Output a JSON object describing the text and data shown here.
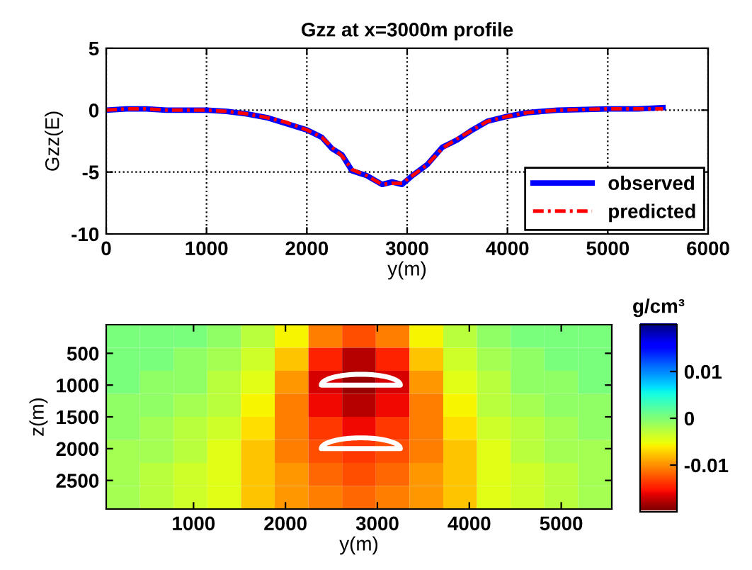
{
  "chart_data": [
    {
      "type": "line",
      "title": "Gzz at x=3000m profile",
      "xlabel": "y(m)",
      "ylabel": "Gzz(E)",
      "xlim": [
        0,
        6000
      ],
      "ylim": [
        -10,
        5
      ],
      "xticks": [
        0,
        1000,
        2000,
        3000,
        4000,
        5000,
        6000
      ],
      "yticks": [
        -10,
        -5,
        0,
        5
      ],
      "grid": true,
      "legend": "bottom right",
      "series": [
        {
          "name": "observed",
          "color": "#0000ff",
          "line_style": "solid",
          "x": [
            0,
            200,
            400,
            600,
            800,
            1000,
            1200,
            1400,
            1600,
            1800,
            2000,
            2150,
            2250,
            2350,
            2450,
            2600,
            2750,
            2850,
            2950,
            3050,
            3200,
            3350,
            3500,
            3650,
            3800,
            4000,
            4200,
            4500,
            5000,
            5300,
            5550
          ],
          "values": [
            0.0,
            0.1,
            0.1,
            0.0,
            0.0,
            0.0,
            -0.1,
            -0.3,
            -0.6,
            -1.1,
            -1.6,
            -2.2,
            -3.1,
            -3.6,
            -4.9,
            -5.3,
            -6.0,
            -5.8,
            -6.0,
            -5.3,
            -4.4,
            -3.0,
            -2.4,
            -1.6,
            -0.9,
            -0.5,
            -0.2,
            0.0,
            0.1,
            0.1,
            0.2
          ]
        },
        {
          "name": "predicted",
          "color": "#ff0000",
          "line_style": "dashdot",
          "x": [
            0,
            200,
            400,
            600,
            800,
            1000,
            1200,
            1400,
            1600,
            1800,
            2000,
            2150,
            2250,
            2350,
            2450,
            2600,
            2750,
            2850,
            2950,
            3050,
            3200,
            3350,
            3500,
            3650,
            3800,
            4000,
            4200,
            4500,
            5000,
            5300,
            5550
          ],
          "values": [
            0.0,
            0.1,
            0.1,
            0.0,
            0.0,
            0.0,
            -0.1,
            -0.3,
            -0.6,
            -1.0,
            -1.6,
            -2.2,
            -3.0,
            -3.7,
            -4.8,
            -5.3,
            -6.0,
            -5.9,
            -5.9,
            -5.3,
            -4.4,
            -3.1,
            -2.3,
            -1.6,
            -0.9,
            -0.5,
            -0.2,
            0.0,
            0.1,
            0.1,
            0.1
          ]
        }
      ]
    },
    {
      "type": "heatmap",
      "xlabel": "y(m)",
      "ylabel": "z(m)",
      "clabel": "g/cm³",
      "xlim": [
        50,
        5550
      ],
      "ylim": [
        2950,
        50
      ],
      "xticks": [
        1000,
        2000,
        3000,
        4000,
        5000
      ],
      "yticks": [
        500,
        1000,
        1500,
        2000,
        2500
      ],
      "clim": [
        -0.02,
        0.02
      ],
      "cticks": [
        -0.01,
        0,
        0.01
      ],
      "x": [
        233,
        600,
        967,
        1333,
        1700,
        2067,
        2433,
        2800,
        3167,
        3533,
        3900,
        4267,
        4633,
        5000,
        5367
      ],
      "y": [
        231,
        594,
        956,
        1319,
        1681,
        2044,
        2406,
        2769
      ],
      "cells": [
        [
          0.0,
          0.0,
          0.0,
          -0.001,
          -0.003,
          -0.006,
          -0.011,
          -0.013,
          -0.011,
          -0.006,
          -0.003,
          -0.001,
          0.0,
          0.0,
          0.0
        ],
        [
          0.0,
          0.0,
          -0.001,
          -0.002,
          -0.004,
          -0.008,
          -0.015,
          -0.018,
          -0.015,
          -0.008,
          -0.004,
          -0.002,
          -0.001,
          0.0,
          0.0
        ],
        [
          0.0,
          -0.001,
          -0.001,
          -0.003,
          -0.005,
          -0.01,
          -0.017,
          -0.019,
          -0.017,
          -0.01,
          -0.005,
          -0.003,
          -0.001,
          -0.001,
          0.0
        ],
        [
          -0.001,
          -0.001,
          -0.002,
          -0.003,
          -0.006,
          -0.011,
          -0.016,
          -0.018,
          -0.016,
          -0.011,
          -0.006,
          -0.003,
          -0.002,
          -0.001,
          -0.001
        ],
        [
          -0.001,
          -0.002,
          -0.003,
          -0.004,
          -0.007,
          -0.011,
          -0.014,
          -0.016,
          -0.014,
          -0.011,
          -0.007,
          -0.004,
          -0.003,
          -0.002,
          -0.001
        ],
        [
          -0.002,
          -0.002,
          -0.003,
          -0.005,
          -0.008,
          -0.011,
          -0.013,
          -0.014,
          -0.013,
          -0.011,
          -0.008,
          -0.005,
          -0.003,
          -0.002,
          -0.002
        ],
        [
          -0.002,
          -0.003,
          -0.004,
          -0.005,
          -0.008,
          -0.01,
          -0.012,
          -0.013,
          -0.012,
          -0.01,
          -0.008,
          -0.005,
          -0.004,
          -0.003,
          -0.002
        ],
        [
          -0.002,
          -0.003,
          -0.004,
          -0.005,
          -0.008,
          -0.01,
          -0.011,
          -0.012,
          -0.011,
          -0.01,
          -0.008,
          -0.005,
          -0.004,
          -0.003,
          -0.002
        ]
      ]
    }
  ]
}
